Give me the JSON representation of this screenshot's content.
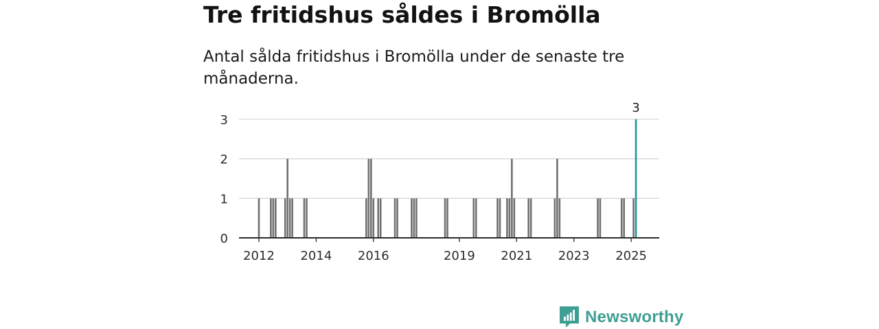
{
  "header": {
    "title": "Tre fritidshus såldes i Bromölla",
    "subtitle": "Antal sålda fritidshus i Bromölla under de senaste tre månaderna."
  },
  "brand": {
    "name": "Newsworthy",
    "icon": "newsworthy-logo-icon",
    "color": "#3f9e94"
  },
  "chart_data": {
    "type": "bar",
    "title": "Tre fritidshus såldes i Bromölla",
    "subtitle": "Antal sålda fritidshus i Bromölla under de senaste tre månaderna.",
    "xlabel": "",
    "ylabel": "",
    "ylim": [
      0,
      3
    ],
    "yticks": [
      0,
      1,
      2,
      3
    ],
    "xticks": [
      "2012",
      "2014",
      "2016",
      "2019",
      "2021",
      "2023",
      "2025"
    ],
    "xlim": [
      "2011-07",
      "2025-12"
    ],
    "grid": true,
    "bar_color": "#707070",
    "highlight_color": "#21949a",
    "highlight_label": "3",
    "x": [
      "2012-01",
      "2012-06",
      "2012-07",
      "2012-08",
      "2012-12",
      "2013-01",
      "2013-02",
      "2013-03",
      "2013-08",
      "2013-09",
      "2015-10",
      "2015-11",
      "2015-12",
      "2016-01",
      "2016-03",
      "2016-04",
      "2016-10",
      "2016-11",
      "2017-05",
      "2017-06",
      "2017-07",
      "2018-07",
      "2018-08",
      "2019-07",
      "2019-08",
      "2020-05",
      "2020-06",
      "2020-09",
      "2020-10",
      "2020-11",
      "2020-12",
      "2021-06",
      "2021-07",
      "2022-05",
      "2022-06",
      "2022-07",
      "2023-11",
      "2023-12",
      "2024-09",
      "2024-10",
      "2025-02",
      "2025-03"
    ],
    "values": [
      1,
      1,
      1,
      1,
      1,
      2,
      1,
      1,
      1,
      1,
      1,
      2,
      2,
      1,
      1,
      1,
      1,
      1,
      1,
      1,
      1,
      1,
      1,
      1,
      1,
      1,
      1,
      1,
      1,
      2,
      1,
      1,
      1,
      1,
      2,
      1,
      1,
      1,
      1,
      1,
      1,
      3
    ],
    "highlight": "2025-03"
  }
}
